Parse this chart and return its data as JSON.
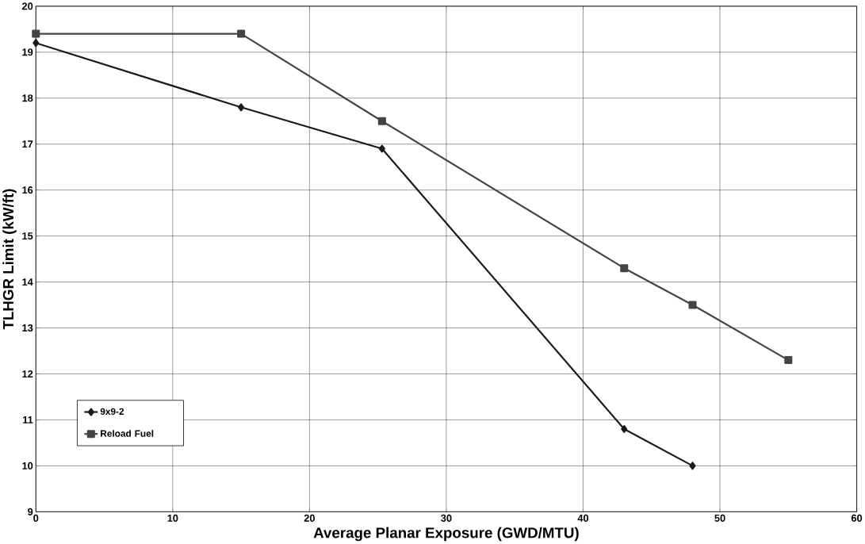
{
  "chart_data": {
    "type": "line",
    "xlabel": "Average Planar Exposure (GWD/MTU)",
    "ylabel": "TLHGR Limit (kW/ft)",
    "xlim": [
      0,
      60
    ],
    "ylim": [
      9,
      20
    ],
    "xticks": [
      0,
      10,
      20,
      30,
      40,
      50,
      60
    ],
    "yticks": [
      9,
      10,
      11,
      12,
      13,
      14,
      15,
      16,
      17,
      18,
      19,
      20
    ],
    "grid": true,
    "legend": "left",
    "line_style": "solid",
    "series": [
      {
        "name": "9x9-2",
        "color": "#1a1a1a",
        "marker": "diamond",
        "x": [
          0,
          15,
          25.3,
          43,
          48
        ],
        "values": [
          19.2,
          17.8,
          16.9,
          10.8,
          10.0
        ]
      },
      {
        "name": "Reload Fuel",
        "color": "#444444",
        "marker": "square",
        "x": [
          0,
          15,
          25.3,
          43,
          48,
          55
        ],
        "values": [
          19.4,
          19.4,
          17.5,
          14.3,
          13.5,
          12.3
        ]
      }
    ]
  }
}
